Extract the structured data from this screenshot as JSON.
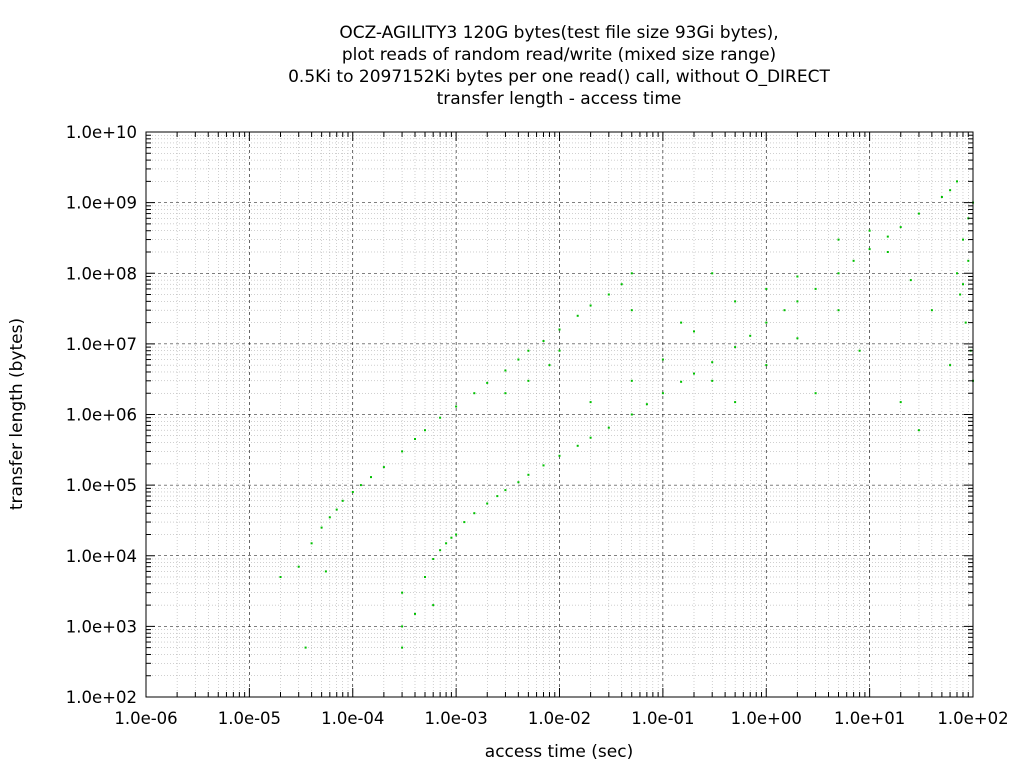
{
  "chart_data": {
    "type": "scatter",
    "title_lines": [
      "OCZ-AGILITY3 120G bytes(test file size 93Gi bytes),",
      "plot reads of random read/write (mixed size range)",
      "0.5Ki to 2097152Ki bytes per one read() call, without O_DIRECT",
      "transfer length - access time"
    ],
    "xlabel": "access time (sec)",
    "ylabel": "transfer length (bytes)",
    "x_scale": "log",
    "y_scale": "log",
    "xlim": [
      1e-06,
      100
    ],
    "ylim": [
      100,
      10000000000.0
    ],
    "x_ticks": [
      "1.0e-06",
      "1.0e-05",
      "1.0e-04",
      "1.0e-03",
      "1.0e-02",
      "1.0e-01",
      "1.0e+00",
      "1.0e+01",
      "1.0e+02"
    ],
    "y_ticks": [
      "1.0e+02",
      "1.0e+03",
      "1.0e+04",
      "1.0e+05",
      "1.0e+06",
      "1.0e+07",
      "1.0e+08",
      "1.0e+09",
      "1.0e+10"
    ],
    "grid": true,
    "minor_grid": true,
    "point_color": "#00c000",
    "series": [
      {
        "points": [
          [
            0.0005,
            5000
          ],
          [
            0.0006,
            9000
          ],
          [
            0.0007,
            12000
          ],
          [
            0.0008,
            15000
          ],
          [
            0.0009,
            18000
          ],
          [
            0.001,
            20000
          ],
          [
            0.0012,
            30000
          ],
          [
            0.0015,
            40000
          ],
          [
            0.002,
            55000
          ],
          [
            0.0025,
            70000
          ],
          [
            0.003,
            85000
          ],
          [
            0.004,
            110000
          ],
          [
            0.005,
            140000
          ],
          [
            0.007,
            190000
          ],
          [
            0.01,
            260000
          ],
          [
            0.015,
            360000
          ],
          [
            0.02,
            470000
          ],
          [
            0.03,
            650000
          ],
          [
            0.05,
            1000000
          ],
          [
            0.07,
            1400000
          ],
          [
            0.1,
            2000000
          ],
          [
            0.15,
            2900000
          ],
          [
            0.2,
            3800000
          ],
          [
            0.3,
            5500000
          ],
          [
            0.5,
            9000000
          ],
          [
            0.7,
            13000000
          ],
          [
            1,
            20000000
          ],
          [
            1.5,
            30000000
          ],
          [
            2,
            40000000
          ],
          [
            3,
            60000000
          ],
          [
            5,
            100000000
          ],
          [
            7,
            150000000
          ],
          [
            10,
            220000000
          ],
          [
            15,
            330000000
          ],
          [
            20,
            450000000
          ],
          [
            30,
            700000000
          ],
          [
            50,
            1200000000
          ],
          [
            60,
            1500000000
          ],
          [
            70,
            2000000000
          ],
          [
            2e-05,
            5000
          ],
          [
            3e-05,
            7000
          ],
          [
            4e-05,
            15000
          ],
          [
            5e-05,
            25000
          ],
          [
            6e-05,
            35000
          ],
          [
            7e-05,
            45000
          ],
          [
            8e-05,
            60000
          ],
          [
            0.0001,
            80000
          ],
          [
            0.00012,
            100000
          ],
          [
            0.00015,
            130000
          ],
          [
            0.0002,
            180000
          ],
          [
            0.0003,
            300000
          ],
          [
            0.0004,
            450000
          ],
          [
            0.0005,
            600000
          ],
          [
            0.0007,
            900000
          ],
          [
            0.001,
            1300000
          ],
          [
            0.0015,
            2000000
          ],
          [
            0.002,
            2800000
          ],
          [
            0.003,
            4200000
          ],
          [
            0.004,
            6000000
          ],
          [
            0.005,
            8000000
          ],
          [
            0.007,
            11000000
          ],
          [
            0.01,
            16000000
          ],
          [
            0.015,
            25000000
          ],
          [
            0.02,
            35000000
          ],
          [
            0.03,
            50000000
          ],
          [
            0.04,
            70000000
          ],
          [
            0.05,
            100000000
          ],
          [
            3.5e-05,
            500
          ],
          [
            5.5e-05,
            6000
          ],
          [
            0.0003,
            500
          ],
          [
            0.0003,
            1000
          ],
          [
            0.0004,
            1500
          ],
          [
            0.0003,
            3000
          ],
          [
            0.0006,
            2000
          ],
          [
            70,
            100000000
          ],
          [
            80,
            300000000
          ],
          [
            90,
            600000000
          ],
          [
            100,
            1000000000
          ],
          [
            75,
            50000000
          ],
          [
            85,
            20000000
          ],
          [
            95,
            8000000
          ],
          [
            100,
            3000000
          ],
          [
            80,
            70000000
          ],
          [
            90,
            150000000
          ],
          [
            30,
            600000
          ],
          [
            20,
            1500000
          ],
          [
            60,
            5000000
          ],
          [
            40,
            30000000
          ],
          [
            25,
            80000000
          ],
          [
            0.2,
            15000000
          ],
          [
            0.5,
            40000000
          ],
          [
            1,
            60000000
          ],
          [
            2,
            90000000
          ],
          [
            0.3,
            3000000
          ],
          [
            0.1,
            6000000
          ],
          [
            0.05,
            3000000
          ],
          [
            0.02,
            1500000
          ],
          [
            0.5,
            1500000
          ],
          [
            1,
            5000000
          ],
          [
            2,
            12000000
          ],
          [
            5,
            30000000
          ],
          [
            3,
            2000000
          ],
          [
            8,
            8000000
          ],
          [
            10,
            400000000
          ],
          [
            15,
            200000000
          ],
          [
            5,
            300000000
          ],
          [
            0.3,
            100000000
          ],
          [
            0.15,
            20000000
          ],
          [
            0.05,
            30000000
          ],
          [
            0.01,
            8000000
          ],
          [
            0.008,
            5000000
          ],
          [
            0.005,
            3000000
          ],
          [
            0.003,
            2000000
          ]
        ]
      }
    ]
  }
}
